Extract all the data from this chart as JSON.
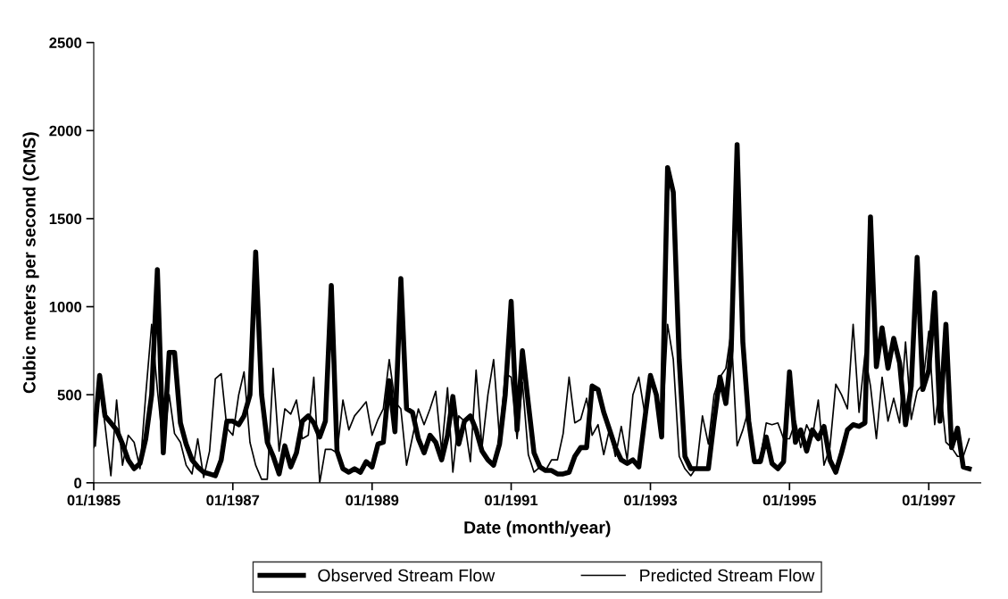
{
  "chart_data": {
    "type": "line",
    "xlabel": "Date (month/year)",
    "ylabel": "Cubic meters per second (CMS)",
    "x": [
      "1985-01",
      "1985-02",
      "1985-03",
      "1985-04",
      "1985-05",
      "1985-06",
      "1985-07",
      "1985-08",
      "1985-09",
      "1985-10",
      "1985-11",
      "1985-12",
      "1986-01",
      "1986-02",
      "1986-03",
      "1986-04",
      "1986-05",
      "1986-06",
      "1986-07",
      "1986-08",
      "1986-09",
      "1986-10",
      "1986-11",
      "1986-12",
      "1987-01",
      "1987-02",
      "1987-03",
      "1987-04",
      "1987-05",
      "1987-06",
      "1987-07",
      "1987-08",
      "1987-09",
      "1987-10",
      "1987-11",
      "1987-12",
      "1988-01",
      "1988-02",
      "1988-03",
      "1988-04",
      "1988-05",
      "1988-06",
      "1988-07",
      "1988-08",
      "1988-09",
      "1988-10",
      "1988-11",
      "1988-12",
      "1989-01",
      "1989-02",
      "1989-03",
      "1989-04",
      "1989-05",
      "1989-06",
      "1989-07",
      "1989-08",
      "1989-09",
      "1989-10",
      "1989-11",
      "1989-12",
      "1990-01",
      "1990-02",
      "1990-03",
      "1990-04",
      "1990-05",
      "1990-06",
      "1990-07",
      "1990-08",
      "1990-09",
      "1990-10",
      "1990-11",
      "1990-12",
      "1991-01",
      "1991-02",
      "1991-03",
      "1991-04",
      "1991-05",
      "1991-06",
      "1991-07",
      "1991-08",
      "1991-09",
      "1991-10",
      "1991-11",
      "1991-12",
      "1992-01",
      "1992-02",
      "1992-03",
      "1992-04",
      "1992-05",
      "1992-06",
      "1992-07",
      "1992-08",
      "1992-09",
      "1992-10",
      "1992-11",
      "1992-12",
      "1993-01",
      "1993-02",
      "1993-03",
      "1993-04",
      "1993-05",
      "1993-06",
      "1993-07",
      "1993-08",
      "1993-09",
      "1993-10",
      "1993-11",
      "1993-12",
      "1994-01",
      "1994-02",
      "1994-03",
      "1994-04",
      "1994-05",
      "1994-06",
      "1994-07",
      "1994-08",
      "1994-09",
      "1994-10",
      "1994-11",
      "1994-12",
      "1995-01",
      "1995-02",
      "1995-03",
      "1995-04",
      "1995-05",
      "1995-06",
      "1995-07",
      "1995-08",
      "1995-09",
      "1995-10",
      "1995-11",
      "1995-12",
      "1996-01",
      "1996-02",
      "1996-03",
      "1996-04",
      "1996-05",
      "1996-06",
      "1996-07",
      "1996-08",
      "1996-09",
      "1996-10",
      "1996-11",
      "1996-12",
      "1997-01",
      "1997-02",
      "1997-03",
      "1997-04",
      "1997-05",
      "1997-06",
      "1997-07",
      "1997-08"
    ],
    "series": [
      {
        "name": "Observed Stream Flow",
        "color": "#000000",
        "values": [
          220,
          610,
          380,
          340,
          300,
          220,
          130,
          80,
          110,
          250,
          500,
          1210,
          170,
          740,
          740,
          340,
          220,
          130,
          90,
          60,
          50,
          40,
          130,
          350,
          350,
          330,
          380,
          500,
          1310,
          500,
          230,
          150,
          50,
          210,
          90,
          170,
          350,
          380,
          340,
          260,
          350,
          1120,
          180,
          80,
          60,
          80,
          60,
          120,
          90,
          220,
          230,
          580,
          290,
          1160,
          420,
          400,
          250,
          170,
          270,
          230,
          130,
          270,
          490,
          220,
          350,
          380,
          300,
          180,
          130,
          100,
          220,
          500,
          1030,
          300,
          750,
          450,
          170,
          90,
          70,
          70,
          50,
          50,
          60,
          150,
          200,
          200,
          550,
          530,
          400,
          300,
          200,
          130,
          110,
          130,
          90,
          350,
          610,
          500,
          260,
          1790,
          1650,
          700,
          150,
          80,
          80,
          80,
          80,
          350,
          600,
          450,
          750,
          1920,
          800,
          350,
          120,
          120,
          260,
          110,
          80,
          120,
          630,
          230,
          300,
          180,
          300,
          250,
          320,
          130,
          60,
          170,
          300,
          330,
          320,
          340,
          1510,
          660,
          880,
          650,
          820,
          680,
          330,
          550,
          1280,
          530,
          640,
          1080,
          350,
          900,
          200,
          310,
          90,
          80
        ]
      },
      {
        "name": "Predicted Stream Flow",
        "color": "#000000",
        "values": [
          200,
          550,
          330,
          40,
          470,
          100,
          270,
          230,
          80,
          500,
          900,
          530,
          200,
          500,
          280,
          230,
          100,
          50,
          250,
          30,
          180,
          590,
          620,
          310,
          270,
          500,
          630,
          230,
          100,
          20,
          20,
          650,
          180,
          420,
          390,
          470,
          250,
          270,
          600,
          0,
          190,
          190,
          170,
          470,
          300,
          380,
          420,
          460,
          270,
          360,
          420,
          700,
          460,
          420,
          100,
          260,
          420,
          330,
          420,
          520,
          180,
          540,
          60,
          380,
          350,
          120,
          640,
          200,
          500,
          700,
          250,
          620,
          600,
          250,
          570,
          160,
          60,
          90,
          70,
          130,
          130,
          280,
          600,
          340,
          360,
          480,
          270,
          330,
          160,
          310,
          150,
          320,
          130,
          500,
          600,
          400,
          600,
          500,
          250,
          900,
          700,
          150,
          80,
          40,
          90,
          380,
          220,
          500,
          600,
          650,
          860,
          210,
          300,
          420,
          110,
          140,
          340,
          330,
          340,
          250,
          250,
          350,
          200,
          330,
          260,
          470,
          100,
          200,
          560,
          500,
          420,
          900,
          400,
          730,
          550,
          250,
          600,
          350,
          480,
          340,
          800,
          360,
          520,
          560,
          860,
          330,
          560,
          230,
          200,
          150,
          150,
          250
        ]
      }
    ],
    "xlim": [
      "1985-01",
      "1997-10"
    ],
    "xticks": [
      {
        "value": "1985-01",
        "label": "01/1985"
      },
      {
        "value": "1987-01",
        "label": "01/1987"
      },
      {
        "value": "1989-01",
        "label": "01/1989"
      },
      {
        "value": "1991-01",
        "label": "01/1991"
      },
      {
        "value": "1993-01",
        "label": "01/1993"
      },
      {
        "value": "1995-01",
        "label": "01/1995"
      },
      {
        "value": "1997-01",
        "label": "01/1997"
      }
    ],
    "ylim": [
      0,
      2500
    ],
    "yticks": [
      0,
      500,
      1000,
      1500,
      2000,
      2500
    ],
    "grid": false,
    "legend": "bottom",
    "marker": "none",
    "line_style": "solid"
  }
}
